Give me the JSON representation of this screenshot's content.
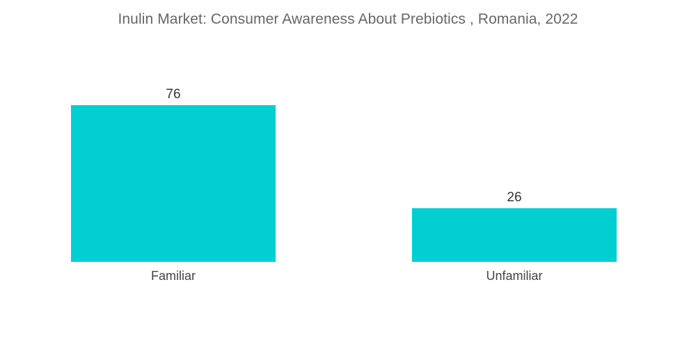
{
  "chart_data": {
    "type": "bar",
    "title": "Inulin Market: Consumer Awareness About Prebiotics , Romania, 2022",
    "categories": [
      "Familiar",
      "Unfamiliar"
    ],
    "values": [
      76,
      26
    ],
    "data_labels": [
      "76",
      "26"
    ],
    "xlabel": "",
    "ylabel": "",
    "ylim": [
      0,
      76
    ],
    "grid": false,
    "legend": "none",
    "bar_color": "#00CED1"
  }
}
